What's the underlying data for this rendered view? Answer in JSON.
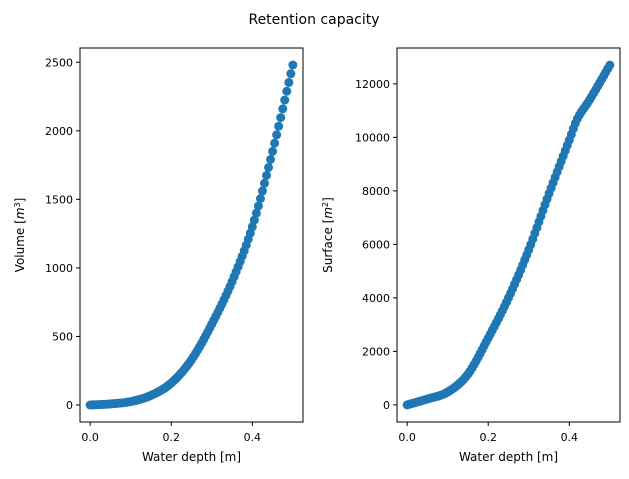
{
  "chart_data": {
    "suptitle": "Retention capacity",
    "color": "#1f77b4",
    "subplots": [
      {
        "type": "scatter",
        "title": "",
        "xlabel": "Water depth [m]",
        "ylabel_main": "Volume [",
        "ylabel_unit": "m",
        "ylabel_sup": "3",
        "ylabel_end": "]",
        "xlim": [
          -0.025,
          0.525
        ],
        "ylim": [
          -124,
          2604
        ],
        "xticks": [
          0.0,
          0.2,
          0.4
        ],
        "xtick_labels": [
          "0.0",
          "0.2",
          "0.4"
        ],
        "yticks": [
          0,
          500,
          1000,
          1500,
          2000,
          2500
        ],
        "ytick_labels": [
          "0",
          "500",
          "1000",
          "1500",
          "2000",
          "2500"
        ],
        "key_x": [
          0.0,
          0.05,
          0.1,
          0.15,
          0.2,
          0.25,
          0.3,
          0.35,
          0.4,
          0.45,
          0.5
        ],
        "key_y": [
          0,
          8,
          25,
          70,
          160,
          330,
          590,
          900,
          1300,
          1850,
          2480
        ]
      },
      {
        "type": "scatter",
        "title": "",
        "xlabel": "Water depth [m]",
        "ylabel_main": "Surface [",
        "ylabel_unit": "m",
        "ylabel_sup": "2",
        "ylabel_end": "]",
        "xlim": [
          -0.025,
          0.525
        ],
        "ylim": [
          -640,
          13340
        ],
        "xticks": [
          0.0,
          0.2,
          0.4
        ],
        "xtick_labels": [
          "0.0",
          "0.2",
          "0.4"
        ],
        "yticks": [
          0,
          2000,
          4000,
          6000,
          8000,
          10000,
          12000
        ],
        "ytick_labels": [
          "0",
          "2000",
          "4000",
          "6000",
          "8000",
          "10000",
          "12000"
        ],
        "key_x": [
          0.0,
          0.05,
          0.1,
          0.15,
          0.2,
          0.25,
          0.3,
          0.35,
          0.4,
          0.42,
          0.45,
          0.5
        ],
        "key_y": [
          0,
          220,
          480,
          1150,
          2500,
          4000,
          5800,
          7900,
          9900,
          10700,
          11400,
          12700
        ]
      }
    ],
    "points_per_series": 101
  }
}
